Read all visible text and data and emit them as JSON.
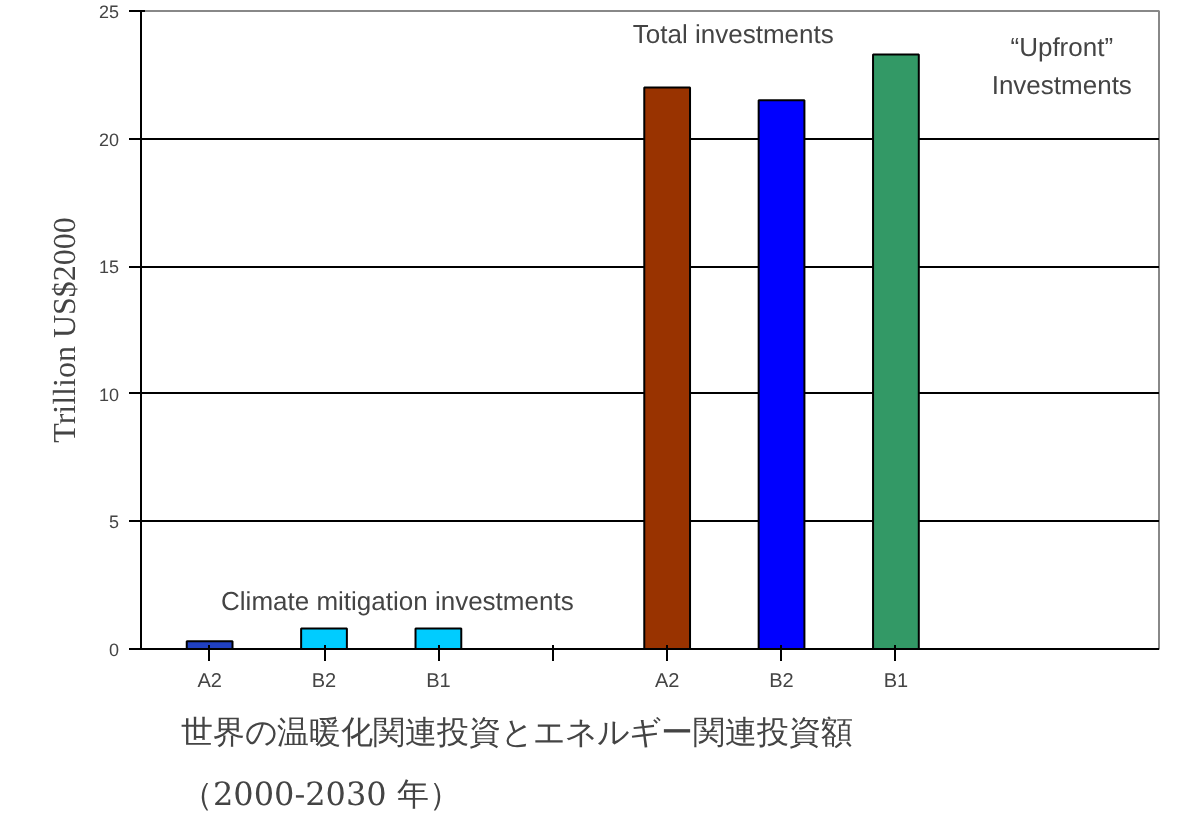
{
  "chart_data": {
    "type": "bar",
    "title": "世界の温暖化関連投資とエネルギー関連投資額（2000-2030 年）",
    "ylabel": "Trillion US$2000",
    "categories": [
      "A2",
      "B2",
      "B1",
      null,
      "A2",
      "B2",
      "B1"
    ],
    "values": [
      0.3,
      0.8,
      0.8,
      null,
      22,
      21.5,
      23.3
    ],
    "colors": [
      "#2040c0",
      "#00ccff",
      "#00ccff",
      null,
      "#993300",
      "#0000ff",
      "#339966"
    ],
    "ylim": [
      0,
      25
    ],
    "yticks": [
      0,
      5,
      10,
      15,
      20,
      25
    ],
    "grid": "y",
    "annotations": [
      "Climate mitigation investments",
      "Total investments",
      "“Upfront”\nInvestments"
    ]
  }
}
